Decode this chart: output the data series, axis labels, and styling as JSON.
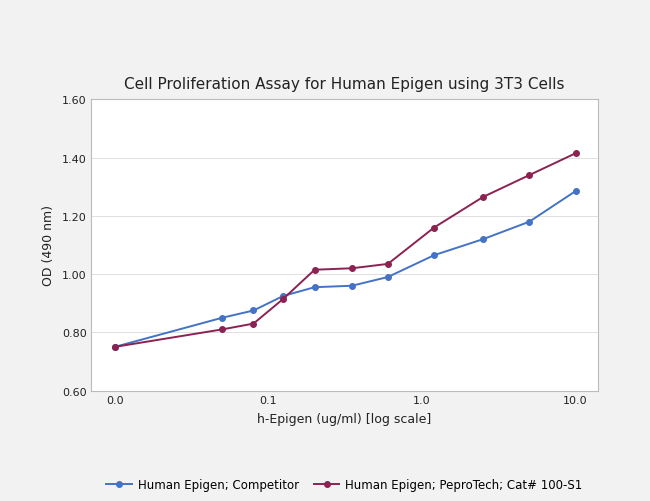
{
  "title": "Cell Proliferation Assay for Human Epigen using 3T3 Cells",
  "xlabel": "h-Epigen (ug/ml) [log scale]",
  "ylabel": "OD (490 nm)",
  "ylim": [
    0.6,
    1.6
  ],
  "yticks": [
    0.6,
    0.8,
    1.0,
    1.2,
    1.4,
    1.6
  ],
  "xticks_vals": [
    0.01,
    0.1,
    1.0,
    10.0
  ],
  "xtick_labels": [
    "0.0",
    "0.1",
    "1.0",
    "10.0"
  ],
  "competitor_x": [
    0.01,
    0.05,
    0.08,
    0.125,
    0.2,
    0.35,
    0.6,
    1.2,
    2.5,
    5.0,
    10.0
  ],
  "competitor_y": [
    0.75,
    0.85,
    0.875,
    0.925,
    0.955,
    0.96,
    0.99,
    1.065,
    1.12,
    1.18,
    1.285
  ],
  "pepro_x": [
    0.01,
    0.05,
    0.08,
    0.125,
    0.2,
    0.35,
    0.6,
    1.2,
    2.5,
    5.0,
    10.0
  ],
  "pepro_y": [
    0.75,
    0.81,
    0.83,
    0.915,
    1.015,
    1.02,
    1.035,
    1.16,
    1.265,
    1.34,
    1.415
  ],
  "competitor_color": "#4472C4",
  "pepro_color": "#8B2252",
  "fig_bg_color": "#F2F2F2",
  "panel_bg_color": "#FFFFFF",
  "panel_border_color": "#CCCCCC",
  "grid_color": "#E0E0E0",
  "title_fontsize": 11,
  "axis_label_fontsize": 9,
  "tick_fontsize": 8,
  "legend_fontsize": 8.5,
  "competitor_label": "Human Epigen; Competitor",
  "pepro_label": "Human Epigen; PeproTech; Cat# 100-S1"
}
